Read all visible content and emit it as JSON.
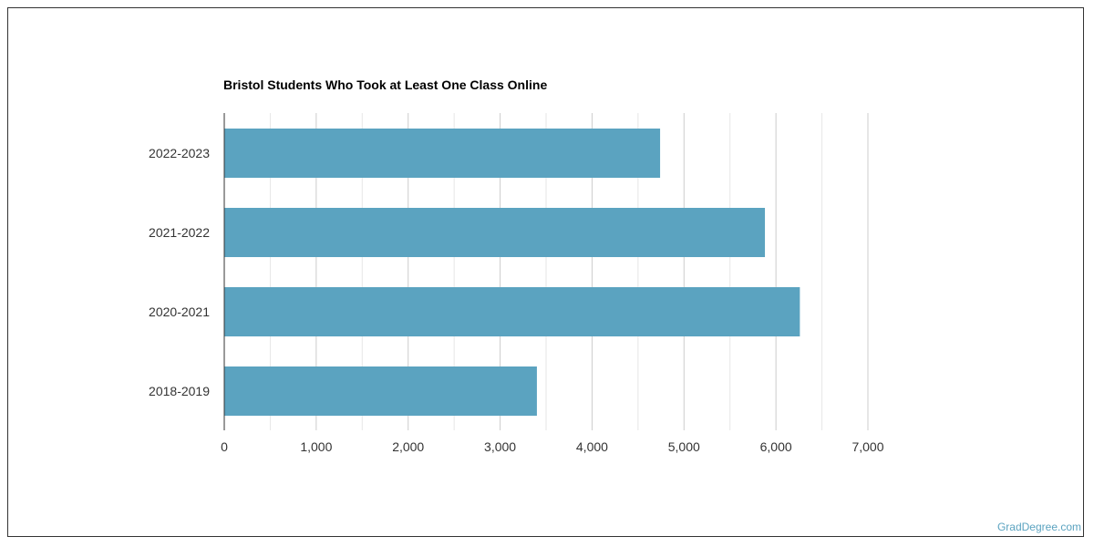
{
  "chart_data": {
    "type": "bar",
    "orientation": "horizontal",
    "title": "Bristol Students Who Took at Least One Class Online",
    "categories": [
      "2022-2023",
      "2021-2022",
      "2020-2021",
      "2018-2019"
    ],
    "values": [
      4740,
      5880,
      6260,
      3400
    ],
    "xlim": [
      0,
      7000
    ],
    "xticks": [
      "0",
      "1,000",
      "2,000",
      "3,000",
      "4,000",
      "5,000",
      "6,000",
      "7,000"
    ],
    "xlabel": "",
    "ylabel": "",
    "bar_color": "#5ba3c0",
    "grid": true
  },
  "watermark": "GradDegree.com"
}
